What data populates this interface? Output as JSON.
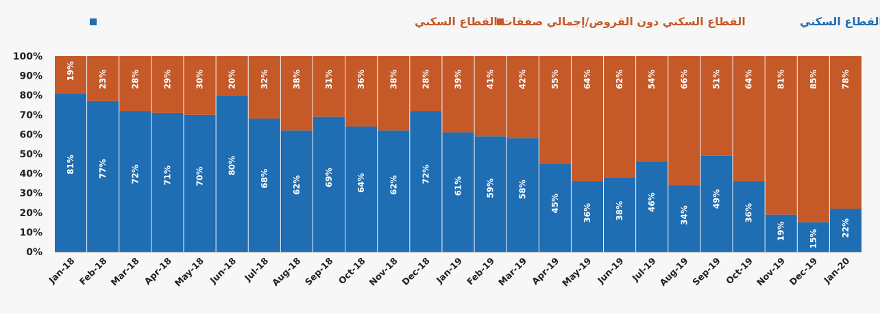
{
  "chart_data": {
    "type": "bar",
    "stacked": true,
    "legend_position": "top",
    "categories": [
      "Jan-18",
      "Feb-18",
      "Mar-18",
      "Apr-18",
      "May-18",
      "Jun-18",
      "Jul-18",
      "Aug-18",
      "Sep-18",
      "Oct-18",
      "Nov-18",
      "Dec-18",
      "Jan-19",
      "Feb-19",
      "Mar-19",
      "Apr-19",
      "May-19",
      "Jun-19",
      "Jul-19",
      "Aug-19",
      "Sep-19",
      "Oct-19",
      "Nov-19",
      "Dec-19",
      "Jan-20"
    ],
    "series": [
      {
        "name": "القطاع السكني دون القروض/إجمالي صفقات القطاع السكني",
        "color": "#1f6db3",
        "values": [
          81,
          77,
          72,
          71,
          70,
          80,
          68,
          62,
          69,
          64,
          62,
          72,
          61,
          59,
          58,
          45,
          36,
          38,
          46,
          34,
          49,
          36,
          19,
          15,
          22
        ]
      },
      {
        "name": "القروض العقارية للأفراد/إجمالي صفقات القطاع السكني",
        "color": "#c55a28",
        "values": [
          19,
          23,
          28,
          29,
          30,
          20,
          32,
          38,
          31,
          36,
          38,
          28,
          39,
          41,
          42,
          55,
          64,
          62,
          54,
          66,
          51,
          64,
          81,
          85,
          78
        ]
      }
    ],
    "yticks": [
      "0%",
      "10%",
      "20%",
      "30%",
      "40%",
      "50%",
      "60%",
      "70%",
      "80%",
      "90%",
      "100%"
    ],
    "ylim": [
      0,
      100
    ],
    "xlabel": "",
    "ylabel": "",
    "grid": false
  }
}
